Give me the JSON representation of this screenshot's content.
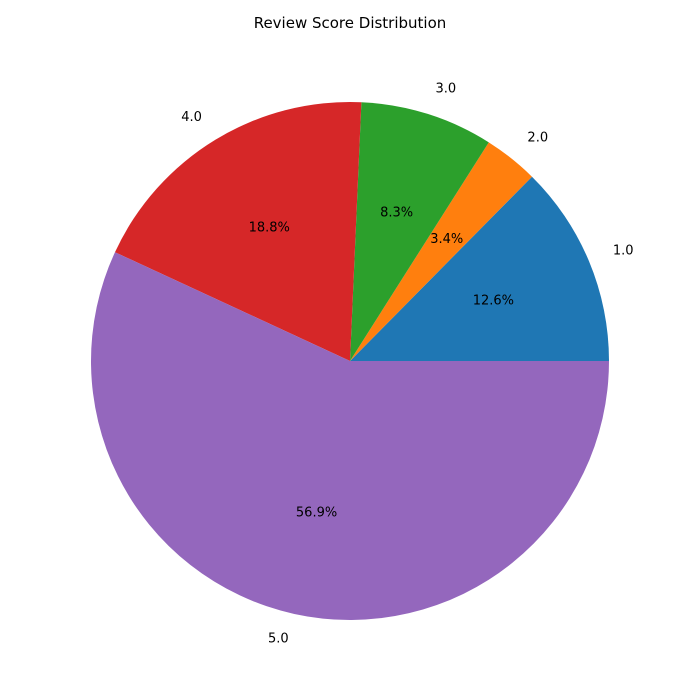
{
  "chart_data": {
    "type": "pie",
    "title": "Review Score Distribution",
    "categories": [
      "1.0",
      "2.0",
      "3.0",
      "4.0",
      "5.0"
    ],
    "values": [
      12.6,
      3.4,
      8.3,
      18.8,
      56.9
    ],
    "percent_labels": [
      "12.6%",
      "3.4%",
      "8.3%",
      "18.8%",
      "56.9%"
    ],
    "colors": [
      "#1f77b4",
      "#ff7f0e",
      "#2ca02c",
      "#d62728",
      "#9467bd"
    ],
    "start_angle_deg": 0,
    "direction": "counterclockwise",
    "legend": "none"
  }
}
